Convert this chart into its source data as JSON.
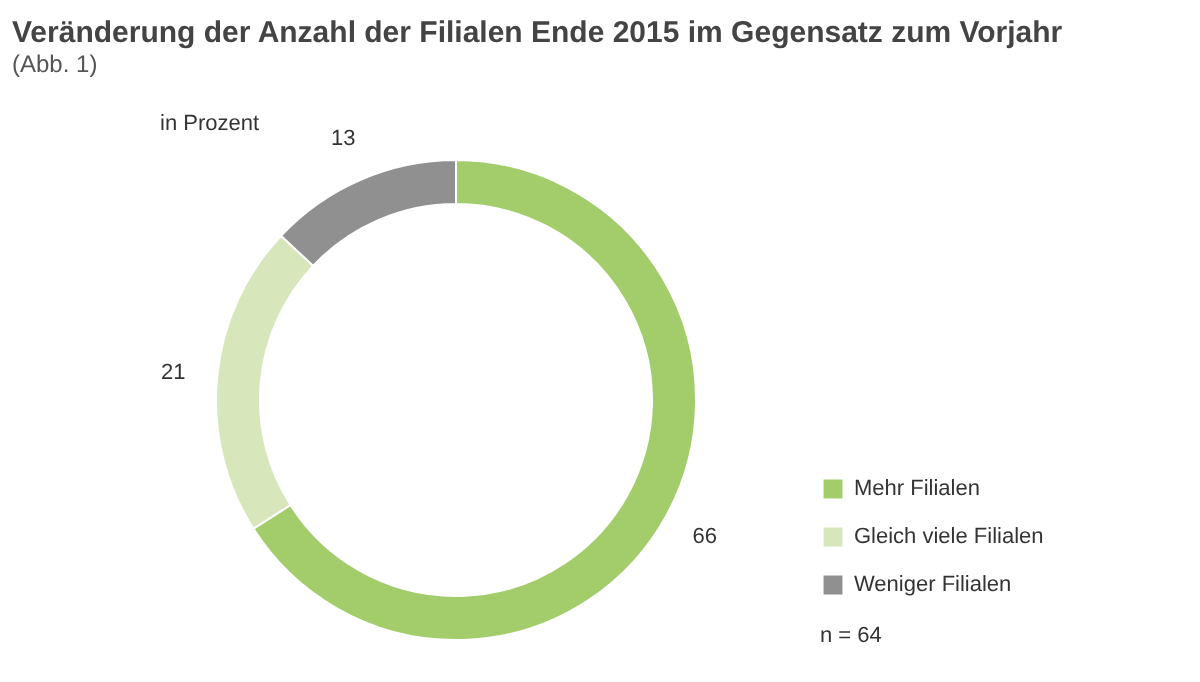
{
  "chart_data": {
    "type": "donut",
    "title": "Veränderung der Anzahl der Filialen Ende 2015 im Gegensatz zum Vorjahr",
    "subtitle": "(Abb. 1)",
    "categories": [
      "Mehr Filialen",
      "Gleich viele Filialen",
      "Weniger Filialen"
    ],
    "values": [
      66,
      21,
      13
    ],
    "colors": [
      "#a3cc6b",
      "#d7e7bb",
      "#909090"
    ],
    "data_labels": true,
    "legend": "bottom right",
    "annotations": [
      "in Prozent",
      "n = 64"
    ]
  }
}
